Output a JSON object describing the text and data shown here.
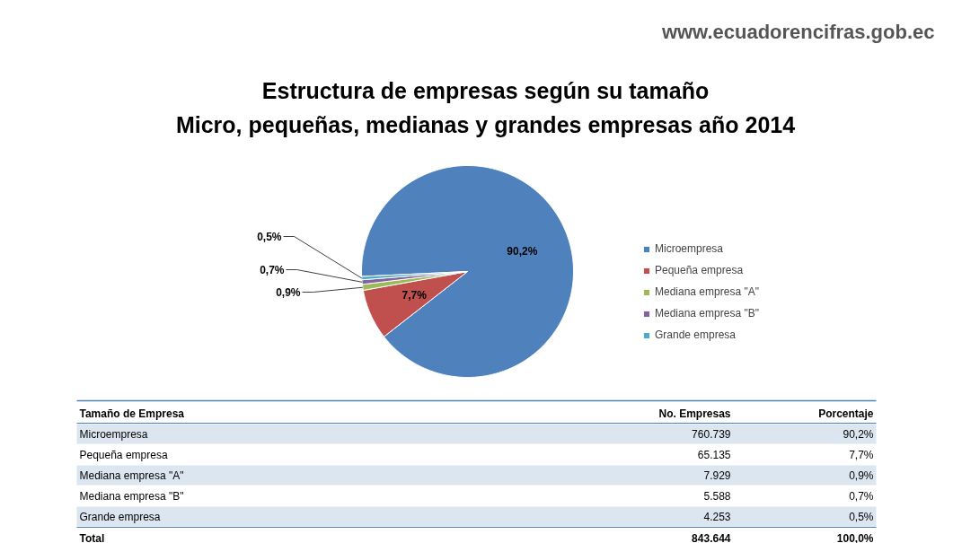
{
  "chart_data": {
    "type": "pie",
    "title": "Estructura de empresas según su tamaño\nMicro, pequeñas, medianas y grandes empresas año 2014",
    "categories": [
      "Microempresa",
      "Pequeña empresa",
      "Mediana empresa \"A\"",
      "Mediana empresa \"B\"",
      "Grande empresa"
    ],
    "values": [
      90.2,
      7.7,
      0.9,
      0.7,
      0.5
    ],
    "colors": [
      "#4f81bd",
      "#c0504d",
      "#9bbb59",
      "#8064a2",
      "#4bacc6"
    ],
    "value_labels": [
      "90,2%",
      "7,7%",
      "0,9%",
      "0,7%",
      "0,5%"
    ],
    "legend": "right",
    "annotations": [
      "www.ecuadorencifras.gob.ec",
      "Tamaño de Empresa",
      "No. Empresas",
      "Porcentaje",
      "Total",
      "843.644",
      "100,0%",
      "760.739",
      "65.135",
      "7.929",
      "5.588",
      "4.253"
    ]
  }
}
